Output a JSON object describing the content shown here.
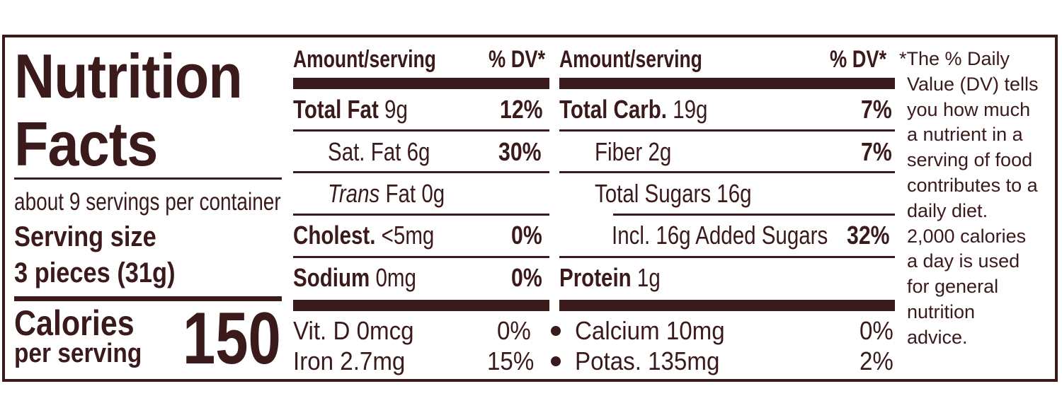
{
  "colors": {
    "ink": "#3b1a1c",
    "background": "#ffffff"
  },
  "title": {
    "line1": "Nutrition",
    "line2": "Facts"
  },
  "servings_per_container": "about 9 servings per container",
  "serving_size": {
    "label": "Serving size",
    "value": "3 pieces (31g)"
  },
  "calories": {
    "label_line1": "Calories",
    "label_line2": "per serving",
    "value": "150"
  },
  "header": {
    "amount": "Amount/serving",
    "dv": "% DV*"
  },
  "left_rows": [
    {
      "name": "Total Fat",
      "amount": "9g",
      "dv": "12%"
    },
    {
      "name": "Sat. Fat",
      "amount": "6g",
      "dv": "30%"
    },
    {
      "name": "Trans",
      "amount": "Fat 0g",
      "dv": ""
    },
    {
      "name": "Cholest.",
      "amount": "<5mg",
      "dv": "0%"
    },
    {
      "name": "Sodium",
      "amount": "0mg",
      "dv": "0%"
    }
  ],
  "right_rows": [
    {
      "name": "Total Carb.",
      "amount": "19g",
      "dv": "7%"
    },
    {
      "name": "Fiber",
      "amount": "2g",
      "dv": "7%"
    },
    {
      "name": "Total Sugars",
      "amount": "16g",
      "dv": ""
    },
    {
      "name": "Incl. 16g Added Sugars",
      "amount": "",
      "dv": "32%"
    },
    {
      "name": "Protein",
      "amount": "1g",
      "dv": ""
    }
  ],
  "micronutrients": [
    {
      "name": "Vit. D 0mcg",
      "dv": "0%"
    },
    {
      "name": "Iron 2.7mg",
      "dv": "15%"
    },
    {
      "name": "Calcium 10mg",
      "dv": "0%"
    },
    {
      "name": "Potas. 135mg",
      "dv": "2%"
    }
  ],
  "footnote": [
    "*The % Daily",
    "Value (DV) tells",
    "you how much",
    "a nutrient in a",
    "serving of food",
    "contributes to a",
    "daily diet.",
    "2,000 calories",
    "a day is used",
    "for general",
    "nutrition",
    "advice."
  ]
}
